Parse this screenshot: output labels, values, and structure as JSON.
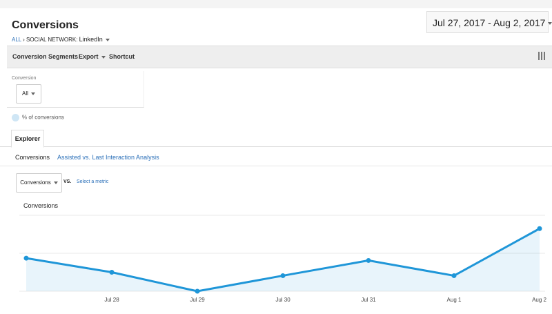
{
  "header": {
    "title": "Conversions",
    "breadcrumb": [
      "ALL",
      "SOCIAL NETWORK:",
      "LinkedIn"
    ],
    "date_range": "Jul 27, 2017 - Aug 2, 2017"
  },
  "toolbar": {
    "buttons": [
      "Conversion Segments",
      "Export",
      "Shortcut"
    ]
  },
  "filter": {
    "label": "Conversion",
    "value": "All"
  },
  "legend": {
    "label": "% of conversions"
  },
  "tabs": [
    "Explorer"
  ],
  "subtabs": [
    "Conversions",
    "Assisted vs. Last Interaction Analysis"
  ],
  "metric_selector": {
    "metric": "Conversions",
    "vs": "VS.",
    "link": "Select a metric"
  },
  "chart_data": {
    "type": "line",
    "categories": [
      null,
      "Jul 28",
      "Jul 29",
      "Jul 30",
      "Jul 31",
      "Aug 1",
      "Aug 2"
    ],
    "series": [
      {
        "name": "Conversions",
        "color": "#1f96d8",
        "values": [
          0.87,
          0.5,
          0,
          0.41,
          0.81,
          0.41,
          1.65
        ]
      }
    ],
    "ylim": [
      0,
      2
    ],
    "grid": true
  }
}
